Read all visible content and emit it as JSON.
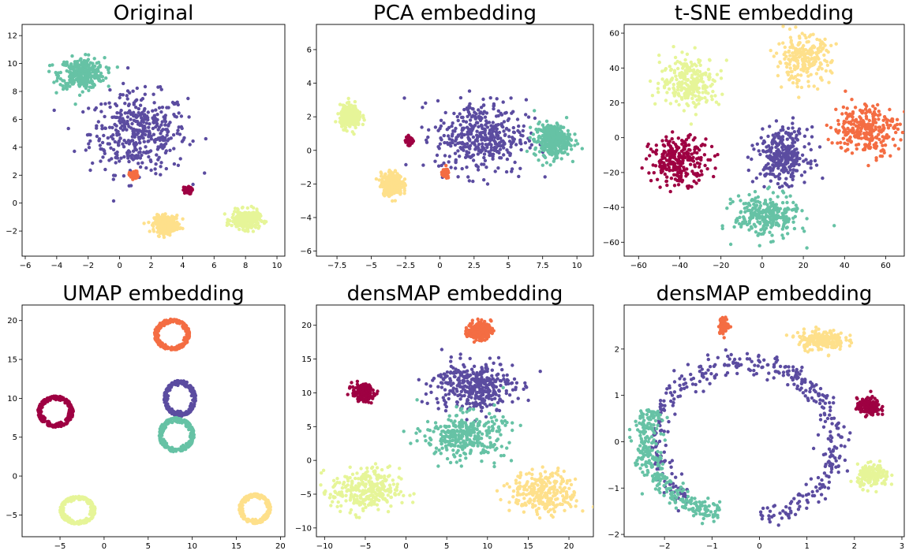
{
  "colors": {
    "c0": "#5b4ca0",
    "c1": "#66c2a5",
    "c2": "#9e0142",
    "c3": "#f46d43",
    "c4": "#fee08b",
    "c5": "#e6f598"
  },
  "chart_data": [
    {
      "type": "scatter",
      "title": "Original",
      "xlim": [
        -6.2,
        10.5
      ],
      "ylim": [
        -3.8,
        12.8
      ],
      "xticks": [
        -6,
        -4,
        -2,
        0,
        2,
        4,
        6,
        8,
        10
      ],
      "yticks": [
        -2,
        0,
        2,
        4,
        6,
        8,
        10,
        12
      ],
      "clusters": [
        {
          "color": "c0",
          "shape": "blob",
          "cx": 1.2,
          "cy": 5.0,
          "rx": 2.8,
          "ry": 2.6,
          "n": 420
        },
        {
          "color": "c1",
          "shape": "blob",
          "cx": -2.4,
          "cy": 9.3,
          "rx": 1.3,
          "ry": 1.0,
          "n": 320
        },
        {
          "color": "c2",
          "shape": "blob",
          "cx": 4.3,
          "cy": 0.9,
          "rx": 0.25,
          "ry": 0.22,
          "n": 60
        },
        {
          "color": "c3",
          "shape": "blob",
          "cx": 0.9,
          "cy": 2.0,
          "rx": 0.25,
          "ry": 0.25,
          "n": 60
        },
        {
          "color": "c4",
          "shape": "blob",
          "cx": 3.0,
          "cy": -1.5,
          "rx": 0.7,
          "ry": 0.55,
          "n": 300
        },
        {
          "color": "c5",
          "shape": "blob",
          "cx": 8.0,
          "cy": -1.2,
          "rx": 0.8,
          "ry": 0.6,
          "n": 300
        }
      ]
    },
    {
      "type": "scatter",
      "title": "PCA embedding",
      "xlim": [
        -9.0,
        11.2
      ],
      "ylim": [
        -6.3,
        7.5
      ],
      "xticks": [
        -7.5,
        -5.0,
        -2.5,
        0.0,
        2.5,
        5.0,
        7.5,
        10.0
      ],
      "yticks": [
        -6,
        -4,
        -2,
        0,
        2,
        4,
        6
      ],
      "clusters": [
        {
          "color": "c0",
          "shape": "blob",
          "cx": 3.0,
          "cy": 0.8,
          "rx": 3.0,
          "ry": 2.0,
          "n": 420
        },
        {
          "color": "c1",
          "shape": "blob",
          "cx": 8.2,
          "cy": 0.6,
          "rx": 1.2,
          "ry": 0.9,
          "n": 320
        },
        {
          "color": "c2",
          "shape": "blob",
          "cx": -2.2,
          "cy": 0.6,
          "rx": 0.25,
          "ry": 0.25,
          "n": 60
        },
        {
          "color": "c3",
          "shape": "blob",
          "cx": 0.4,
          "cy": -1.4,
          "rx": 0.25,
          "ry": 0.25,
          "n": 60
        },
        {
          "color": "c4",
          "shape": "blob",
          "cx": -3.5,
          "cy": -2.0,
          "rx": 0.7,
          "ry": 0.6,
          "n": 300
        },
        {
          "color": "c5",
          "shape": "blob",
          "cx": -6.5,
          "cy": 2.0,
          "rx": 0.7,
          "ry": 0.6,
          "n": 300
        }
      ]
    },
    {
      "type": "scatter",
      "title": "t-SNE embedding",
      "xlim": [
        -67,
        69
      ],
      "ylim": [
        -68,
        65
      ],
      "xticks": [
        -60,
        -40,
        -20,
        0,
        20,
        40,
        60
      ],
      "yticks": [
        -60,
        -40,
        -20,
        0,
        20,
        40,
        60
      ],
      "clusters": [
        {
          "color": "c0",
          "shape": "blob",
          "cx": 10,
          "cy": -10,
          "rx": 11,
          "ry": 14,
          "n": 300
        },
        {
          "color": "c1",
          "shape": "blob",
          "cx": 2,
          "cy": -45,
          "rx": 14,
          "ry": 11,
          "n": 280
        },
        {
          "color": "c2",
          "shape": "blob",
          "cx": -40,
          "cy": -13,
          "rx": 13,
          "ry": 12,
          "n": 260
        },
        {
          "color": "c3",
          "shape": "blob",
          "cx": 50,
          "cy": 5,
          "rx": 14,
          "ry": 13,
          "n": 280
        },
        {
          "color": "c4",
          "shape": "blob",
          "cx": 20,
          "cy": 45,
          "rx": 12,
          "ry": 12,
          "n": 240
        },
        {
          "color": "c5",
          "shape": "blob",
          "cx": -35,
          "cy": 32,
          "rx": 13,
          "ry": 13,
          "n": 260
        }
      ]
    },
    {
      "type": "scatter",
      "title": "UMAP embedding",
      "xlim": [
        -9.3,
        20.5
      ],
      "ylim": [
        -7.8,
        22.0
      ],
      "xticks": [
        -5,
        0,
        5,
        10,
        15,
        20
      ],
      "yticks": [
        -5,
        0,
        5,
        10,
        15,
        20
      ],
      "clusters": [
        {
          "color": "c0",
          "shape": "ring",
          "cx": 8.6,
          "cy": 10.0,
          "rx": 1.8,
          "ry": 2.3,
          "n": 260
        },
        {
          "color": "c1",
          "shape": "ring",
          "cx": 8.2,
          "cy": 5.3,
          "rx": 2.0,
          "ry": 2.2,
          "n": 260
        },
        {
          "color": "c2",
          "shape": "ring",
          "cx": -5.5,
          "cy": 8.3,
          "rx": 2.0,
          "ry": 2.0,
          "n": 240
        },
        {
          "color": "c3",
          "shape": "ring",
          "cx": 7.7,
          "cy": 18.2,
          "rx": 2.0,
          "ry": 2.0,
          "n": 260
        },
        {
          "color": "c4",
          "shape": "ring",
          "cx": 17.1,
          "cy": -4.2,
          "rx": 1.8,
          "ry": 1.9,
          "n": 240
        },
        {
          "color": "c5",
          "shape": "ring",
          "cx": -3.0,
          "cy": -4.4,
          "rx": 2.0,
          "ry": 1.8,
          "n": 260
        }
      ]
    },
    {
      "type": "scatter",
      "title": "densMAP embedding",
      "xlim": [
        -11.0,
        23.0
      ],
      "ylim": [
        -11.3,
        23.0
      ],
      "xticks": [
        -10,
        -5,
        0,
        5,
        10,
        15,
        20
      ],
      "yticks": [
        -10,
        -5,
        0,
        5,
        10,
        15,
        20
      ],
      "clusters": [
        {
          "color": "c0",
          "shape": "blob",
          "cx": 8.3,
          "cy": 11.0,
          "rx": 4.5,
          "ry": 3.3,
          "n": 360
        },
        {
          "color": "c1",
          "shape": "blob",
          "cx": 7.2,
          "cy": 3.7,
          "rx": 4.5,
          "ry": 3.0,
          "n": 320
        },
        {
          "color": "c2",
          "shape": "blob",
          "cx": -5.3,
          "cy": 10.0,
          "rx": 1.2,
          "ry": 1.2,
          "n": 160
        },
        {
          "color": "c3",
          "shape": "blob",
          "cx": 9.0,
          "cy": 19.2,
          "rx": 1.3,
          "ry": 1.2,
          "n": 220
        },
        {
          "color": "c4",
          "shape": "blob",
          "cx": 17.0,
          "cy": -4.8,
          "rx": 3.6,
          "ry": 2.8,
          "n": 280
        },
        {
          "color": "c5",
          "shape": "blob",
          "cx": -5.0,
          "cy": -4.5,
          "rx": 3.8,
          "ry": 3.0,
          "n": 300
        }
      ]
    },
    {
      "type": "scatter",
      "title": "densMAP embedding",
      "xlim": [
        -2.85,
        3.05
      ],
      "ylim": [
        -2.05,
        2.95
      ],
      "xticks": [
        -2,
        -1,
        0,
        1,
        2,
        3
      ],
      "yticks": [
        -2,
        -1,
        0,
        1,
        2
      ],
      "clusters": [
        {
          "color": "c0",
          "shape": "arc",
          "cx": -0.3,
          "cy": 0.0,
          "rx": 1.9,
          "ry": 1.7,
          "a0": -80,
          "a1": 230,
          "n": 420
        },
        {
          "color": "c1",
          "shape": "arc",
          "cx": -0.3,
          "cy": 0.0,
          "rx": 2.1,
          "ry": 1.6,
          "a0": 155,
          "a1": 255,
          "n": 320
        },
        {
          "color": "c2",
          "shape": "blob",
          "cx": 2.3,
          "cy": 0.75,
          "rx": 0.22,
          "ry": 0.17,
          "n": 160
        },
        {
          "color": "c3",
          "shape": "blob",
          "cx": -0.75,
          "cy": 2.5,
          "rx": 0.1,
          "ry": 0.15,
          "n": 80
        },
        {
          "color": "c4",
          "shape": "blob",
          "cx": 1.3,
          "cy": 2.2,
          "rx": 0.45,
          "ry": 0.2,
          "n": 200
        },
        {
          "color": "c5",
          "shape": "blob",
          "cx": 2.4,
          "cy": -0.75,
          "rx": 0.3,
          "ry": 0.22,
          "n": 160
        }
      ]
    }
  ]
}
